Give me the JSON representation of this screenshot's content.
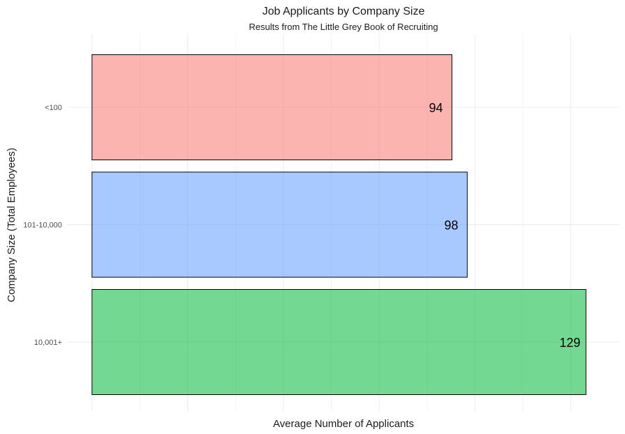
{
  "chart_data": {
    "type": "bar",
    "orientation": "horizontal",
    "title": "Job Applicants by Company Size",
    "subtitle": "Results from The Little Grey Book of Recruiting",
    "xlabel": "Average Number of Applicants",
    "ylabel": "Company Size (Total Employees)",
    "categories": [
      "<100",
      "101-10,000",
      "10,001+"
    ],
    "values": [
      94,
      98,
      129
    ],
    "data_labels": [
      "94",
      "98",
      "129"
    ],
    "colors": [
      "#F8766D",
      "#619CFF",
      "#00BA38"
    ],
    "xlim": [
      0,
      135
    ],
    "x_ticks": [
      0,
      25,
      50,
      75,
      100,
      125
    ],
    "x_tick_labels_shown": false,
    "grid": true,
    "legend": "none"
  }
}
